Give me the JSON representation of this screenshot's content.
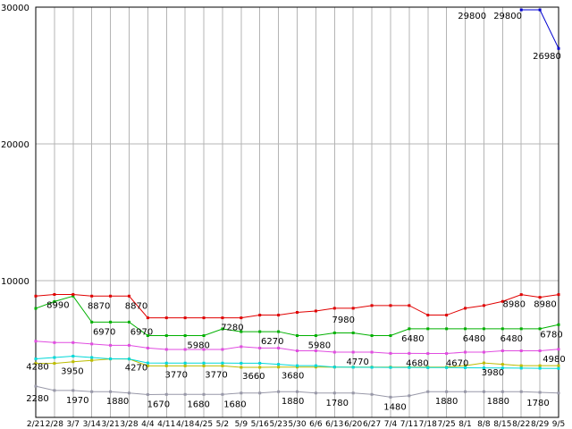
{
  "chart_data": {
    "type": "line",
    "title": "",
    "xlabel": "",
    "ylabel": "",
    "ylim": [
      0,
      30000
    ],
    "grid": true,
    "legend": "none",
    "marker": "square",
    "grid_color": "#b4b4b4",
    "axis_color": "#000000",
    "label_color": "#000000",
    "background": "#ffffff",
    "y_ticks": [
      {
        "value": 10000,
        "label": "10000"
      },
      {
        "value": 20000,
        "label": "20000"
      },
      {
        "value": 30000,
        "label": "30000"
      }
    ],
    "x_tick_labels": [
      "2/21",
      "2/28",
      "3/7",
      "3/14",
      "3/21",
      "3/28",
      "4/4",
      "4/11",
      "4/18",
      "4/25",
      "5/2",
      "5/9",
      "5/16",
      "5/23",
      "5/30",
      "6/6",
      "6/13",
      "6/20",
      "6/27",
      "7/4",
      "7/11",
      "7/18",
      "7/25",
      "8/1",
      "8/8",
      "8/15",
      "8/22",
      "8/29",
      "9/5"
    ],
    "series": [
      {
        "name": "gray",
        "color": "#9898a8",
        "values": [
          2280,
          1970,
          1970,
          1880,
          1880,
          1780,
          1670,
          1680,
          1680,
          1680,
          1680,
          1780,
          1780,
          1880,
          1880,
          1780,
          1780,
          1780,
          1680,
          1480,
          1580,
          1880,
          1880,
          1880,
          1880,
          1880,
          1880,
          1830,
          1780
        ],
        "point_labels": [
          {
            "i": 0,
            "text": "2280",
            "dx": 2,
            "dy": 17
          },
          {
            "i": 2,
            "text": "1970",
            "dx": 5,
            "dy": 14
          },
          {
            "i": 4,
            "text": "1880",
            "dx": 8,
            "dy": 14
          },
          {
            "i": 6,
            "text": "1670",
            "dx": 12,
            "dy": 14
          },
          {
            "i": 8,
            "text": "1680",
            "dx": 15,
            "dy": 14
          },
          {
            "i": 10,
            "text": "1680",
            "dx": 14,
            "dy": 14
          },
          {
            "i": 13,
            "text": "1880",
            "dx": 16,
            "dy": 14
          },
          {
            "i": 16,
            "text": "1780",
            "dx": 3,
            "dy": 14
          },
          {
            "i": 19,
            "text": "1480",
            "dx": 5,
            "dy": 14
          },
          {
            "i": 22,
            "text": "1880",
            "dx": 0,
            "dy": 14
          },
          {
            "i": 25,
            "text": "1880",
            "dx": -5,
            "dy": 14
          },
          {
            "i": 28,
            "text": "1780",
            "dx": -23,
            "dy": 14
          }
        ]
      },
      {
        "name": "olive",
        "color": "#bcbc00",
        "values": [
          3950,
          3950,
          4070,
          4170,
          4270,
          4270,
          3770,
          3770,
          3770,
          3770,
          3770,
          3660,
          3660,
          3680,
          3680,
          3680,
          3680,
          3680,
          3680,
          3680,
          3680,
          3680,
          3680,
          3780,
          3980,
          3880,
          3780,
          3780,
          3780
        ],
        "point_labels": [
          {
            "i": 1,
            "text": "3950",
            "dx": 20,
            "dy": 12
          },
          {
            "i": 7,
            "text": "3770",
            "dx": 11,
            "dy": 13
          },
          {
            "i": 9,
            "text": "3770",
            "dx": 14,
            "dy": 13
          },
          {
            "i": 11,
            "text": "3660",
            "dx": 14,
            "dy": 13
          },
          {
            "i": 13,
            "text": "3680",
            "dx": 16,
            "dy": 13
          },
          {
            "i": 24,
            "text": "3980",
            "dx": 10,
            "dy": 14
          }
        ]
      },
      {
        "name": "cyan",
        "color": "#00d8d8",
        "values": [
          4280,
          4380,
          4480,
          4380,
          4280,
          4270,
          3980,
          3970,
          3970,
          3970,
          3970,
          3960,
          3960,
          3880,
          3780,
          3780,
          3680,
          3670,
          3660,
          3650,
          3650,
          3640,
          3640,
          3630,
          3620,
          3610,
          3600,
          3590,
          3580
        ],
        "point_labels": [
          {
            "i": 0,
            "text": "4280",
            "dx": 2,
            "dy": 12
          },
          {
            "i": 5,
            "text": "4270",
            "dx": 8,
            "dy": 13
          }
        ]
      },
      {
        "name": "magenta",
        "color": "#e04ce0",
        "values": [
          5570,
          5470,
          5470,
          5370,
          5270,
          5270,
          5070,
          4970,
          4970,
          4970,
          4970,
          5170,
          5070,
          5070,
          4870,
          4870,
          4770,
          4770,
          4770,
          4680,
          4680,
          4670,
          4670,
          4770,
          4770,
          4870,
          4870,
          4870,
          4980
        ],
        "point_labels": [
          {
            "i": 17,
            "text": "4770",
            "dx": 5,
            "dy": 14
          },
          {
            "i": 20,
            "text": "4680",
            "dx": 9,
            "dy": 14
          },
          {
            "i": 22,
            "text": "4670",
            "dx": 12,
            "dy": 14
          },
          {
            "i": 28,
            "text": "4980",
            "dx": -5,
            "dy": 14
          }
        ]
      },
      {
        "name": "green",
        "color": "#00b000",
        "values": [
          7970,
          8470,
          8870,
          6970,
          6970,
          6970,
          5980,
          5980,
          5980,
          5980,
          6470,
          6270,
          6270,
          6270,
          5980,
          5980,
          6180,
          6180,
          5980,
          5980,
          6480,
          6480,
          6480,
          6480,
          6480,
          6480,
          6480,
          6480,
          6780
        ],
        "point_labels": [
          {
            "i": 3,
            "text": "6970",
            "dx": 14,
            "dy": 14
          },
          {
            "i": 5,
            "text": "6970",
            "dx": 14,
            "dy": 14
          },
          {
            "i": 8,
            "text": "5980",
            "dx": 15,
            "dy": 14
          },
          {
            "i": 12,
            "text": "6270",
            "dx": 14,
            "dy": 14
          },
          {
            "i": 15,
            "text": "5980",
            "dx": 4,
            "dy": 14
          },
          {
            "i": 20,
            "text": "6480",
            "dx": 4,
            "dy": 14
          },
          {
            "i": 23,
            "text": "6480",
            "dx": 10,
            "dy": 14
          },
          {
            "i": 25,
            "text": "6480",
            "dx": 10,
            "dy": 14
          },
          {
            "i": 28,
            "text": "6780",
            "dx": -8,
            "dy": 14
          }
        ]
      },
      {
        "name": "red",
        "color": "#e00000",
        "values": [
          8870,
          8990,
          8990,
          8870,
          8870,
          8870,
          7280,
          7280,
          7280,
          7280,
          7280,
          7280,
          7480,
          7480,
          7680,
          7780,
          7980,
          7980,
          8180,
          8180,
          8180,
          7480,
          7480,
          7980,
          8180,
          8480,
          8980,
          8780,
          8980
        ],
        "point_labels": [
          {
            "i": 1,
            "text": "8990",
            "dx": 4,
            "dy": 15
          },
          {
            "i": 3,
            "text": "8870",
            "dx": 8,
            "dy": 14
          },
          {
            "i": 5,
            "text": "8870",
            "dx": 8,
            "dy": 14
          },
          {
            "i": 10,
            "text": "7280",
            "dx": 11,
            "dy": 14
          },
          {
            "i": 16,
            "text": "7980",
            "dx": 10,
            "dy": 16
          },
          {
            "i": 26,
            "text": "8980",
            "dx": -8,
            "dy": 14
          },
          {
            "i": 28,
            "text": "8980",
            "dx": -15,
            "dy": 14
          }
        ]
      },
      {
        "name": "blue",
        "color": "#0000d0",
        "values": [
          null,
          null,
          null,
          null,
          null,
          null,
          null,
          null,
          null,
          null,
          null,
          null,
          null,
          null,
          null,
          null,
          null,
          null,
          null,
          null,
          null,
          null,
          null,
          null,
          null,
          null,
          29800,
          29800,
          26980
        ],
        "point_labels": [
          {
            "i": 26,
            "text": "29800",
            "dx": -55,
            "dy": 10
          },
          {
            "i": 27,
            "text": "29800",
            "dx": -36,
            "dy": 10
          },
          {
            "i": 28,
            "text": "26980",
            "dx": -13,
            "dy": 12
          }
        ]
      }
    ]
  }
}
